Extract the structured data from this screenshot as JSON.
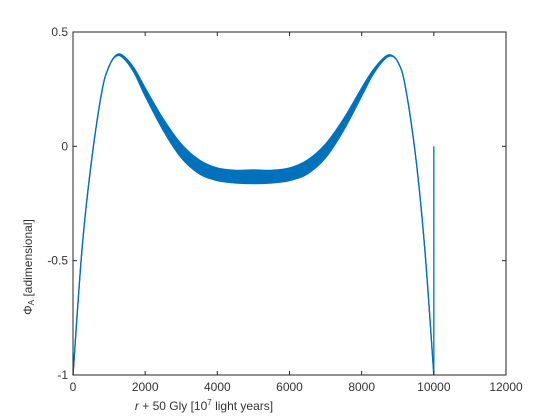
{
  "chart_data": {
    "type": "line",
    "title": "",
    "xlabel": {
      "r": "r",
      "plus": " + 50 Gly [10",
      "sup": "7",
      "tail": " light years]"
    },
    "ylabel": {
      "phi": "Φ",
      "sub": "A",
      "tail": " [adimensional]"
    },
    "xlim": [
      0,
      12000
    ],
    "ylim": [
      -1,
      0.5
    ],
    "xticks": [
      0,
      2000,
      4000,
      6000,
      8000,
      10000,
      12000
    ],
    "xtick_labels": [
      "0",
      "2000",
      "4000",
      "6000",
      "8000",
      "10000",
      "12000"
    ],
    "yticks": [
      -1,
      -0.5,
      0,
      0.5
    ],
    "ytick_labels": [
      "-1",
      "-0.5",
      "0",
      "0.5"
    ],
    "grid": false,
    "series": [
      {
        "color": "#0072BD",
        "band": {
          "x": [
            0,
            250,
            500,
            800,
            1000,
            1200,
            1400,
            1700,
            2000,
            2500,
            3000,
            3500,
            4000,
            4500,
            5000,
            5500,
            6000,
            6500,
            7000,
            7500,
            8000,
            8300,
            8600,
            8800,
            9000,
            9200,
            9500,
            9750,
            10000
          ],
          "upper": [
            -1.0,
            -0.45,
            -0.08,
            0.24,
            0.35,
            0.4,
            0.395,
            0.34,
            0.255,
            0.12,
            0.01,
            -0.06,
            -0.095,
            -0.105,
            -0.103,
            -0.105,
            -0.095,
            -0.06,
            0.01,
            0.12,
            0.255,
            0.33,
            0.385,
            0.4,
            0.37,
            0.27,
            -0.05,
            -0.45,
            -1.0
          ],
          "lower": [
            -1.0,
            -0.45,
            -0.08,
            0.24,
            0.35,
            0.395,
            0.385,
            0.32,
            0.22,
            0.07,
            -0.05,
            -0.12,
            -0.15,
            -0.16,
            -0.163,
            -0.16,
            -0.15,
            -0.12,
            -0.05,
            0.07,
            0.22,
            0.31,
            0.375,
            0.395,
            0.37,
            0.27,
            -0.05,
            -0.45,
            -1.0
          ]
        },
        "spike": {
          "x": 10000,
          "y": [
            -1.0,
            0.0
          ]
        }
      }
    ]
  }
}
